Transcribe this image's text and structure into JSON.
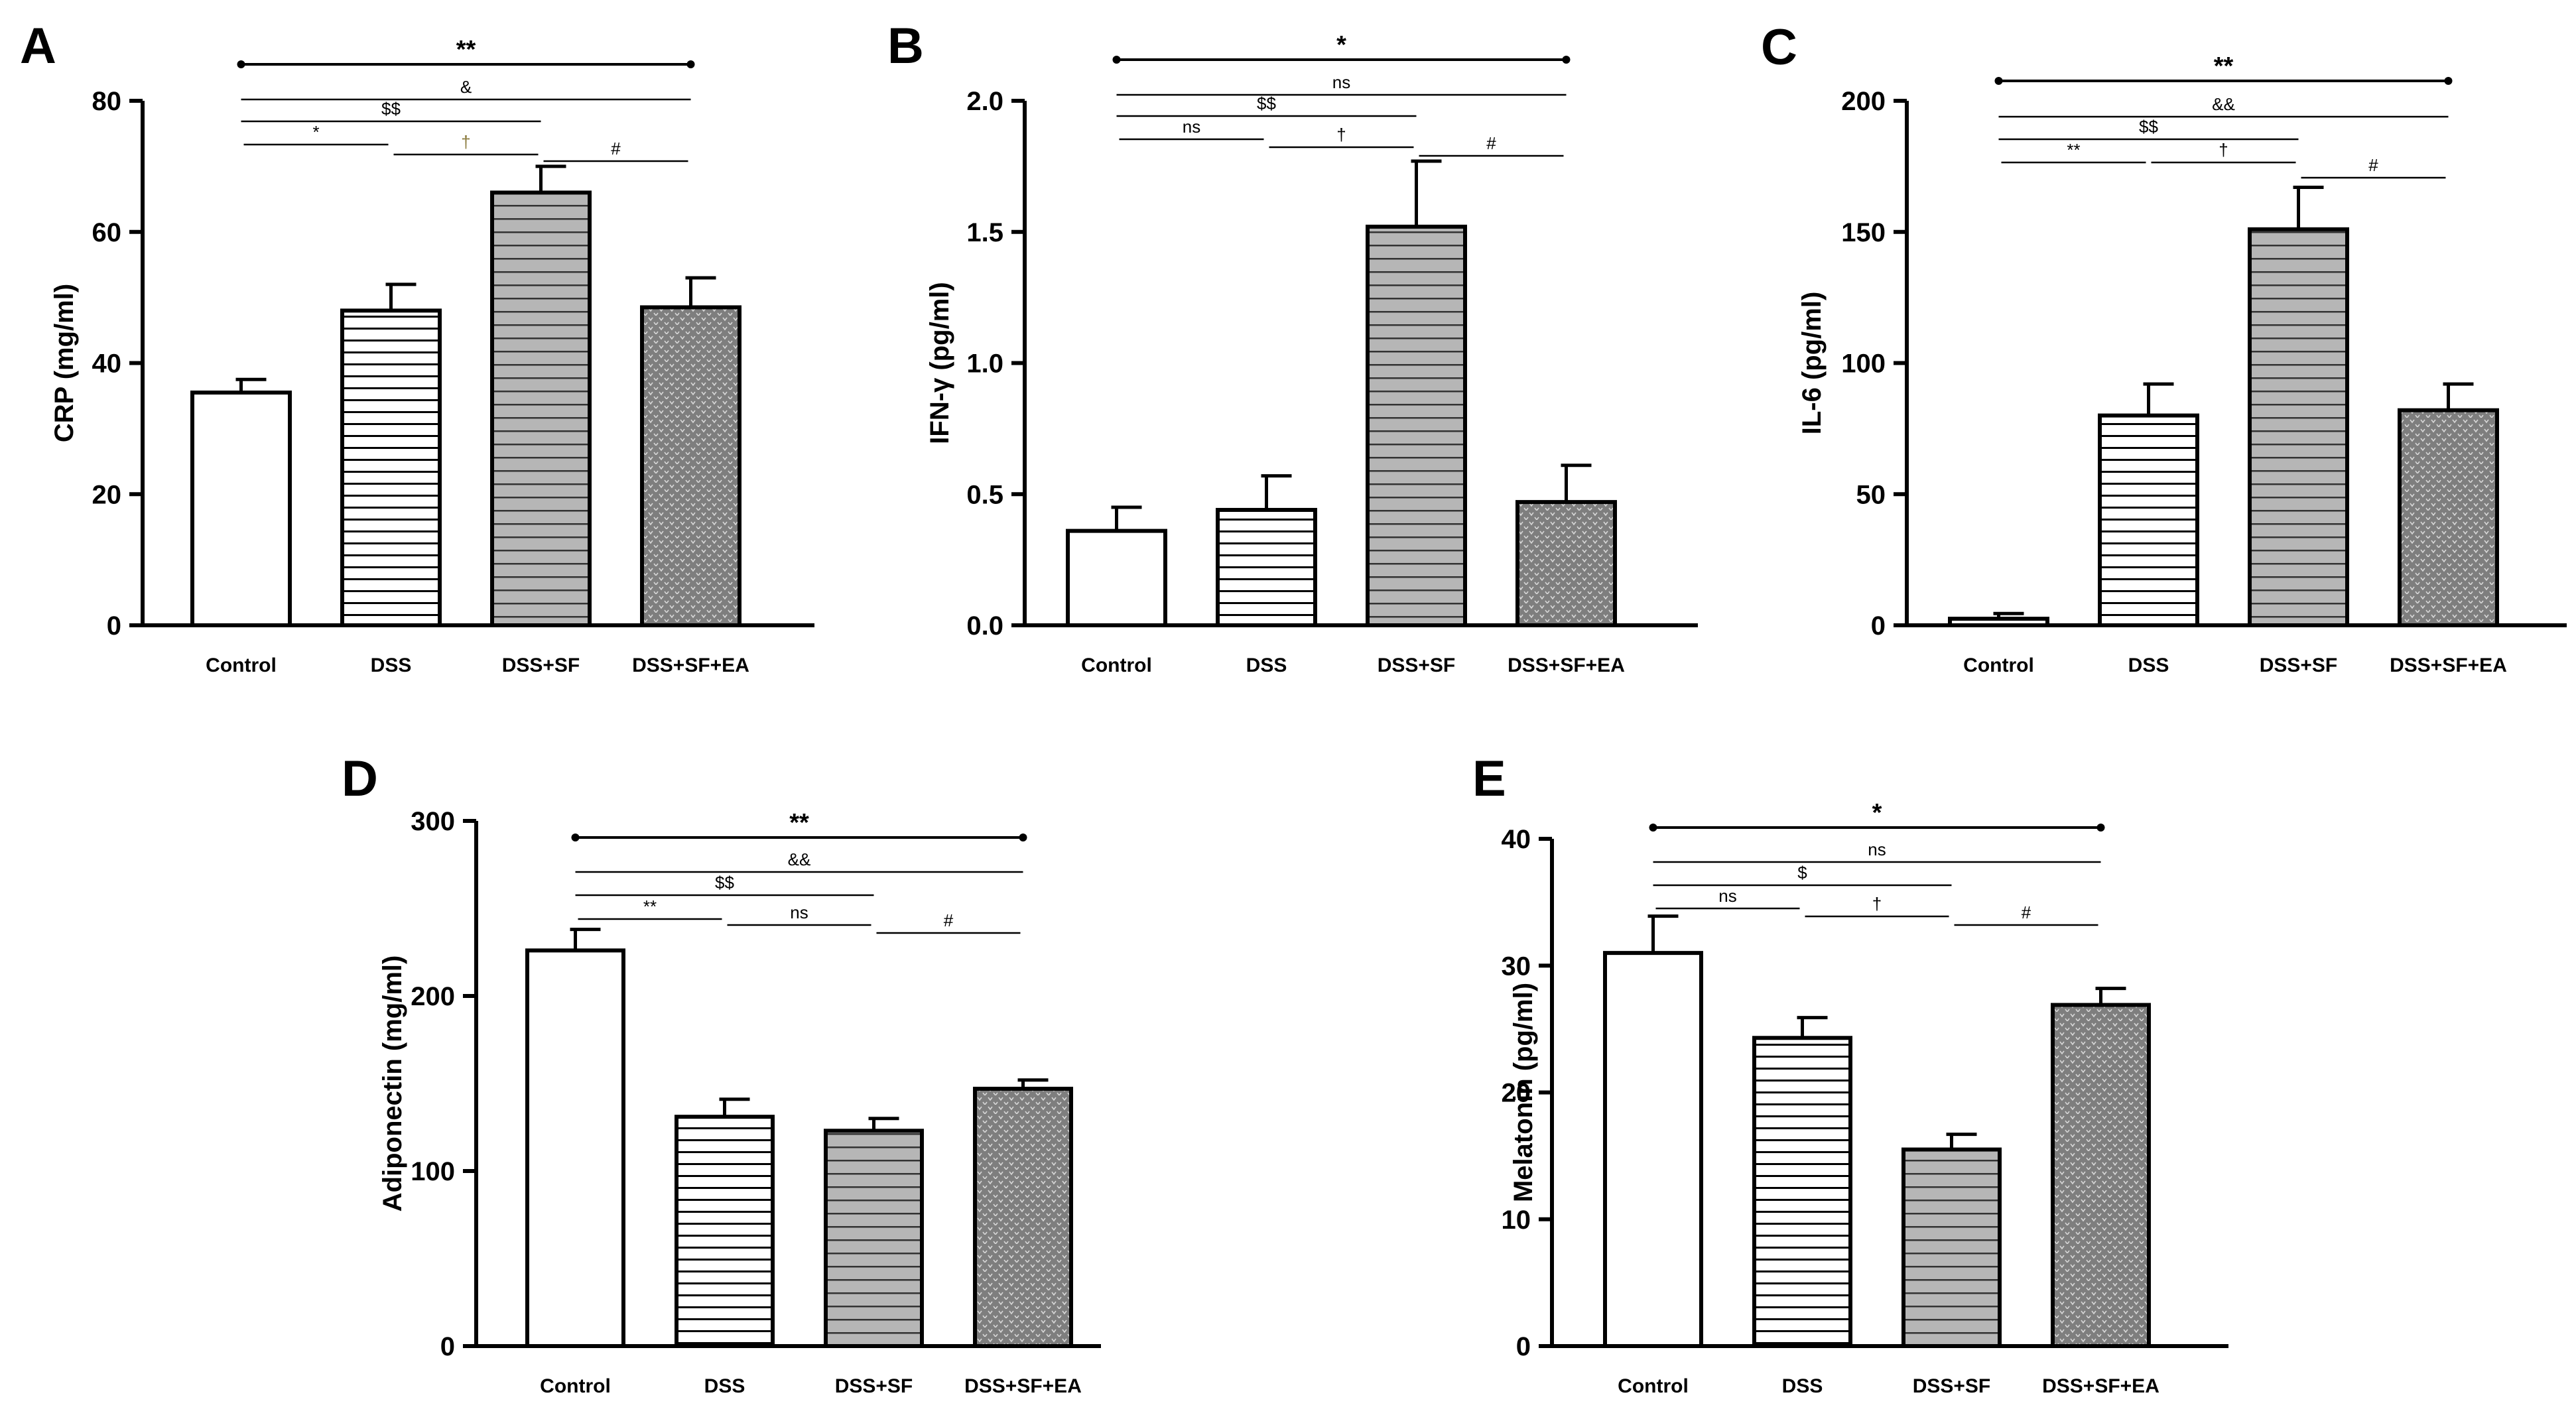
{
  "chart_data": [
    {
      "type": "bar",
      "panel": "A",
      "ylabel": "CRP (mg/ml)",
      "ylim": [
        0,
        80
      ],
      "yticks": [
        "0",
        "20",
        "40",
        "60",
        "80"
      ],
      "categories": [
        "Control",
        "DSS",
        "DSS+SF",
        "DSS+SF+EA"
      ],
      "values": [
        35.5,
        48,
        66,
        48.5
      ],
      "errors": [
        2,
        4,
        4,
        4.5
      ],
      "brackets": [
        {
          "from": 0,
          "to": 3,
          "label": "**",
          "bold": true,
          "color": "#000000"
        },
        {
          "from": 0,
          "to": 3,
          "label": "&",
          "bold": false,
          "color": "#000000"
        },
        {
          "from": 0,
          "to": 2,
          "label": "$$",
          "bold": false,
          "color": "#000000"
        },
        {
          "from": 0,
          "to": 1,
          "label": "*",
          "bold": false,
          "color": "#000000"
        },
        {
          "from": 1,
          "to": 2,
          "label": "†",
          "bold": false,
          "color": "#8a7a3c"
        },
        {
          "from": 2,
          "to": 3,
          "label": "#",
          "bold": false,
          "color": "#000000"
        }
      ]
    },
    {
      "type": "bar",
      "panel": "B",
      "ylabel": "IFN-γ (pg/ml)",
      "ylim": [
        0,
        2.0
      ],
      "yticks": [
        "0.0",
        "0.5",
        "1.0",
        "1.5",
        "2.0"
      ],
      "categories": [
        "Control",
        "DSS",
        "DSS+SF",
        "DSS+SF+EA"
      ],
      "values": [
        0.36,
        0.44,
        1.52,
        0.47
      ],
      "errors": [
        0.09,
        0.13,
        0.25,
        0.14
      ],
      "brackets": [
        {
          "from": 0,
          "to": 3,
          "label": "*",
          "bold": true,
          "color": "#000000"
        },
        {
          "from": 0,
          "to": 3,
          "label": "ns",
          "bold": false,
          "color": "#000000"
        },
        {
          "from": 0,
          "to": 2,
          "label": "$$",
          "bold": false,
          "color": "#000000"
        },
        {
          "from": 0,
          "to": 1,
          "label": "ns",
          "bold": false,
          "color": "#000000"
        },
        {
          "from": 1,
          "to": 2,
          "label": "†",
          "bold": false,
          "color": "#000000"
        },
        {
          "from": 2,
          "to": 3,
          "label": "#",
          "bold": false,
          "color": "#000000"
        }
      ]
    },
    {
      "type": "bar",
      "panel": "C",
      "ylabel": "IL-6 (pg/ml)",
      "ylim": [
        0,
        200
      ],
      "yticks": [
        "0",
        "50",
        "100",
        "150",
        "200"
      ],
      "categories": [
        "Control",
        "DSS",
        "DSS+SF",
        "DSS+SF+EA"
      ],
      "values": [
        2.5,
        80,
        151,
        82
      ],
      "errors": [
        2,
        12,
        16,
        10
      ],
      "brackets": [
        {
          "from": 0,
          "to": 3,
          "label": "**",
          "bold": true,
          "color": "#000000"
        },
        {
          "from": 0,
          "to": 3,
          "label": "&&",
          "bold": false,
          "color": "#000000"
        },
        {
          "from": 0,
          "to": 2,
          "label": "$$",
          "bold": false,
          "color": "#000000"
        },
        {
          "from": 0,
          "to": 1,
          "label": "**",
          "bold": false,
          "color": "#000000"
        },
        {
          "from": 1,
          "to": 2,
          "label": "†",
          "bold": false,
          "color": "#000000"
        },
        {
          "from": 2,
          "to": 3,
          "label": "#",
          "bold": false,
          "color": "#000000"
        }
      ]
    },
    {
      "type": "bar",
      "panel": "D",
      "ylabel": "Adiponectin (mg/ml)",
      "ylim": [
        0,
        300
      ],
      "yticks": [
        "0",
        "100",
        "200",
        "300"
      ],
      "categories": [
        "Control",
        "DSS",
        "DSS+SF",
        "DSS+SF+EA"
      ],
      "values": [
        226,
        131,
        123,
        147
      ],
      "errors": [
        12,
        10,
        7,
        5
      ],
      "brackets": [
        {
          "from": 0,
          "to": 3,
          "label": "**",
          "bold": true,
          "color": "#000000"
        },
        {
          "from": 0,
          "to": 3,
          "label": "&&",
          "bold": false,
          "color": "#000000"
        },
        {
          "from": 0,
          "to": 2,
          "label": "$$",
          "bold": false,
          "color": "#000000"
        },
        {
          "from": 0,
          "to": 1,
          "label": "**",
          "bold": false,
          "color": "#000000"
        },
        {
          "from": 1,
          "to": 2,
          "label": "ns",
          "bold": false,
          "color": "#000000"
        },
        {
          "from": 2,
          "to": 3,
          "label": "#",
          "bold": false,
          "color": "#000000"
        }
      ]
    },
    {
      "type": "bar",
      "panel": "E",
      "ylabel": "Melatonin (pg/ml)",
      "ylim": [
        0,
        40
      ],
      "yticks": [
        "0",
        "10",
        "20",
        "30",
        "40"
      ],
      "categories": [
        "Control",
        "DSS",
        "DSS+SF",
        "DSS+SF+EA"
      ],
      "values": [
        31,
        24.3,
        15.5,
        26.9
      ],
      "errors": [
        2.9,
        1.6,
        1.2,
        1.3
      ],
      "brackets": [
        {
          "from": 0,
          "to": 3,
          "label": "*",
          "bold": true,
          "color": "#000000"
        },
        {
          "from": 0,
          "to": 3,
          "label": "ns",
          "bold": false,
          "color": "#000000"
        },
        {
          "from": 0,
          "to": 2,
          "label": "$",
          "bold": false,
          "color": "#000000"
        },
        {
          "from": 0,
          "to": 1,
          "label": "ns",
          "bold": false,
          "color": "#000000"
        },
        {
          "from": 1,
          "to": 2,
          "label": "†",
          "bold": false,
          "color": "#000000"
        },
        {
          "from": 2,
          "to": 3,
          "label": "#",
          "bold": false,
          "color": "#000000"
        }
      ]
    }
  ],
  "colors": {
    "axis": "#000000",
    "bar_stroke": "#000000",
    "control_fill": "#ffffff",
    "dss_fill": "#ffffff",
    "dss_sf_fill": "#b8b8b8",
    "dss_sf_ea_fill": "#8a8a8a",
    "pattern_line": "#000000",
    "pattern_mark": "#dcdcdc"
  }
}
